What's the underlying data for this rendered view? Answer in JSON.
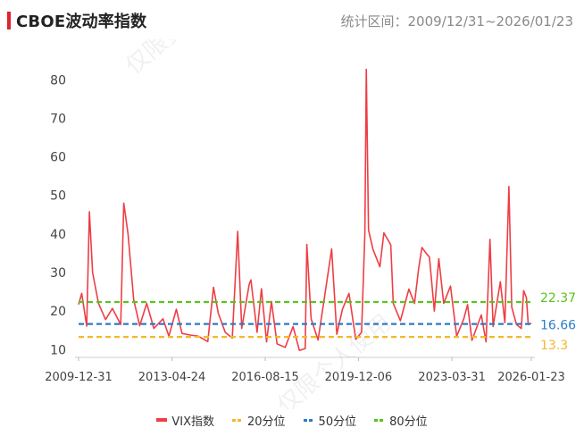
{
  "header": {
    "title": "CBOE波动率指数",
    "range_text": "统计区间：2009/12/31~2026/01/23"
  },
  "watermarks": [
    "仅限赏学",
    "仅限个人使用"
  ],
  "colors": {
    "accent": "#e0242c",
    "vix": "#ee3e45",
    "p20": "#f5b82a",
    "p50": "#2d7ac8",
    "p80": "#5ac31e"
  },
  "legend": {
    "vix": "VIX指数",
    "p20": "20分位",
    "p50": "50分位",
    "p80": "80分位"
  },
  "chart_data": {
    "type": "line",
    "title": "CBOE波动率指数",
    "xlabel": "",
    "ylabel": "",
    "ylim": [
      8,
      84
    ],
    "yticks": [
      10,
      20,
      30,
      40,
      50,
      60,
      70,
      80
    ],
    "xticks": [
      "2009-12-31",
      "2013-04-24",
      "2016-08-15",
      "2019-12-06",
      "2023-03-31",
      "2026-01-23"
    ],
    "grid": false,
    "legend_position": "bottom",
    "series": [
      {
        "name": "VIX指数",
        "x": [
          "2009-12-31",
          "2010-02-10",
          "2010-04-15",
          "2010-05-20",
          "2010-07-01",
          "2010-09-15",
          "2010-12-15",
          "2011-03-15",
          "2011-06-30",
          "2011-08-08",
          "2011-10-03",
          "2011-12-15",
          "2012-03-01",
          "2012-06-01",
          "2012-09-01",
          "2012-12-28",
          "2013-03-15",
          "2013-06-20",
          "2013-09-01",
          "2013-12-15",
          "2014-04-01",
          "2014-08-01",
          "2014-10-15",
          "2014-12-15",
          "2015-03-15",
          "2015-06-15",
          "2015-08-24",
          "2015-10-15",
          "2016-01-20",
          "2016-02-11",
          "2016-05-01",
          "2016-06-27",
          "2016-09-01",
          "2016-11-04",
          "2017-01-15",
          "2017-05-01",
          "2017-08-11",
          "2017-11-01",
          "2018-01-15",
          "2018-02-05",
          "2018-04-01",
          "2018-07-01",
          "2018-10-01",
          "2018-12-24",
          "2019-03-01",
          "2019-05-13",
          "2019-08-05",
          "2019-11-01",
          "2020-01-15",
          "2020-02-27",
          "2020-03-16",
          "2020-04-15",
          "2020-06-11",
          "2020-09-08",
          "2020-10-30",
          "2021-01-27",
          "2021-03-01",
          "2021-06-01",
          "2021-09-20",
          "2021-12-01",
          "2022-01-24",
          "2022-03-07",
          "2022-05-09",
          "2022-06-13",
          "2022-08-15",
          "2022-10-12",
          "2022-12-15",
          "2023-03-13",
          "2023-06-01",
          "2023-09-01",
          "2023-10-20",
          "2023-12-15",
          "2024-04-15",
          "2024-06-15",
          "2024-08-05",
          "2024-09-15",
          "2024-12-18",
          "2025-02-15",
          "2025-04-08",
          "2025-05-15",
          "2025-07-15",
          "2025-09-15",
          "2025-10-16",
          "2025-11-20",
          "2025-12-15",
          "2026-01-23"
        ],
        "values": [
          21.7,
          24.6,
          16.1,
          45.8,
          30,
          22,
          17.8,
          20.7,
          16.5,
          48,
          40,
          23,
          16.2,
          22,
          15.5,
          18,
          13.5,
          20.5,
          14.2,
          13.8,
          13.5,
          12.1,
          26.2,
          19.5,
          14.5,
          13,
          40.7,
          15.5,
          27,
          28.1,
          14.5,
          25.8,
          12,
          22.5,
          11.5,
          10.6,
          16,
          9.8,
          10.3,
          37.3,
          18,
          12.5,
          24.9,
          36.1,
          14,
          20.5,
          24.6,
          12.7,
          14.5,
          40,
          82.7,
          41,
          36,
          31.5,
          40.3,
          37.2,
          22,
          17.5,
          25.7,
          22,
          31,
          36.5,
          34.8,
          34,
          20,
          33.6,
          22,
          26.5,
          13.5,
          18,
          21.7,
          12.4,
          19,
          12,
          38.6,
          16,
          27.6,
          17,
          52.3,
          21,
          16.5,
          15.5,
          25.3,
          23.5,
          16.5,
          16.9
        ]
      },
      {
        "name": "20分位",
        "value": 13.3
      },
      {
        "name": "50分位",
        "value": 16.66
      },
      {
        "name": "80分位",
        "value": 22.37
      }
    ]
  }
}
